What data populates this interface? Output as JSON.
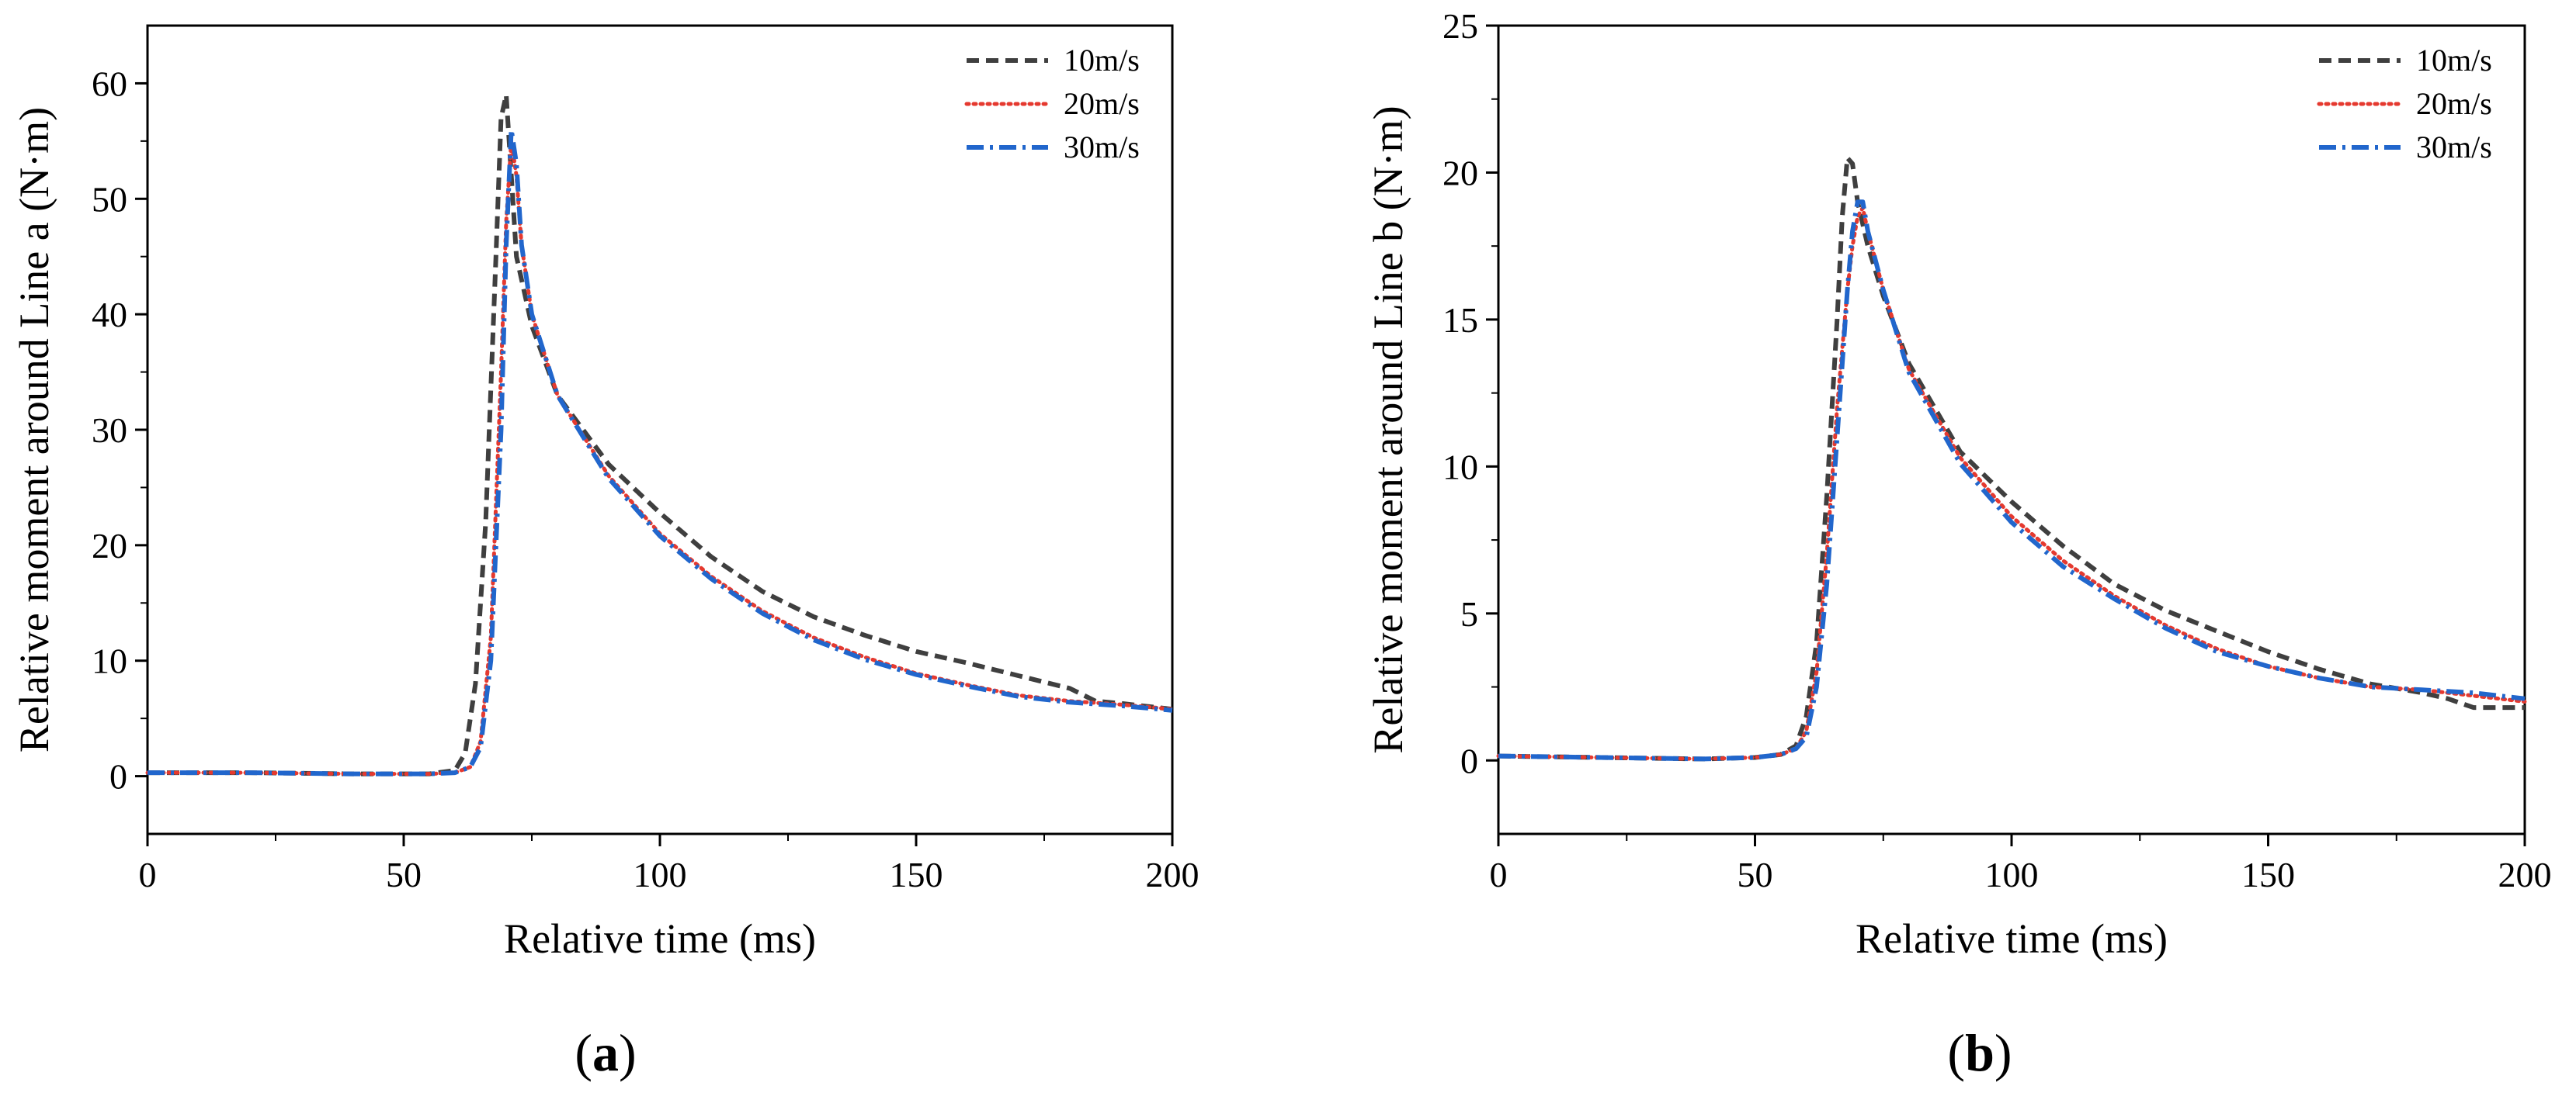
{
  "chart_data": [
    {
      "type": "line",
      "panel_label": "a",
      "xlabel": "Relative time (ms)",
      "ylabel": "Relative moment around Line a (N·m)",
      "xlim": [
        0,
        200
      ],
      "ylim": [
        -5,
        65
      ],
      "xticks": [
        0,
        50,
        100,
        150,
        200
      ],
      "yticks": [
        0,
        10,
        20,
        30,
        40,
        50,
        60
      ],
      "legend_position": "top-right",
      "series": [
        {
          "name": "10m/s",
          "color": "#3f3f3f",
          "style": "dash",
          "x": [
            0,
            20,
            40,
            55,
            60,
            62,
            64,
            66,
            68,
            69,
            70,
            71,
            72,
            75,
            80,
            90,
            100,
            110,
            120,
            130,
            140,
            150,
            160,
            170,
            180,
            185,
            190,
            200
          ],
          "y": [
            0.3,
            0.3,
            0.2,
            0.2,
            0.5,
            2,
            8,
            22,
            45,
            57,
            59,
            52,
            45,
            39,
            33,
            27,
            22.8,
            19,
            16,
            13.8,
            12.2,
            10.8,
            9.8,
            8.7,
            7.6,
            6.5,
            6.3,
            5.8
          ]
        },
        {
          "name": "20m/s",
          "color": "#e5392f",
          "style": "dot",
          "x": [
            0,
            20,
            40,
            55,
            60,
            63,
            65,
            67,
            69,
            70,
            71,
            72,
            73,
            75,
            80,
            90,
            100,
            110,
            120,
            130,
            140,
            150,
            160,
            170,
            180,
            190,
            200
          ],
          "y": [
            0.3,
            0.3,
            0.2,
            0.2,
            0.3,
            0.8,
            3,
            12,
            35,
            48,
            55,
            52,
            46,
            40,
            33,
            26,
            21,
            17.3,
            14.3,
            12,
            10.3,
            8.9,
            7.9,
            7,
            6.5,
            6.2,
            5.8
          ]
        },
        {
          "name": "30m/s",
          "color": "#2166cc",
          "style": "dashdot",
          "x": [
            0,
            20,
            40,
            55,
            60,
            63,
            65,
            67,
            69,
            70,
            71,
            72,
            73,
            75,
            80,
            90,
            100,
            110,
            120,
            130,
            140,
            150,
            160,
            170,
            180,
            190,
            200
          ],
          "y": [
            0.3,
            0.3,
            0.2,
            0.2,
            0.3,
            0.8,
            2.5,
            10,
            30,
            46,
            56,
            53,
            46,
            40,
            33,
            25.8,
            20.8,
            17.1,
            14.1,
            11.8,
            10.1,
            8.8,
            7.8,
            6.9,
            6.4,
            6.1,
            5.7
          ]
        }
      ]
    },
    {
      "type": "line",
      "panel_label": "b",
      "xlabel": "Relative time (ms)",
      "ylabel": "Relative moment around Line b (N·m)",
      "xlim": [
        0,
        200
      ],
      "ylim": [
        -2.5,
        25
      ],
      "xticks": [
        0,
        50,
        100,
        150,
        200
      ],
      "yticks": [
        0,
        5,
        10,
        15,
        20,
        25
      ],
      "legend_position": "top-right",
      "series": [
        {
          "name": "10m/s",
          "color": "#3f3f3f",
          "style": "dash",
          "x": [
            0,
            20,
            40,
            50,
            55,
            58,
            60,
            62,
            64,
            66,
            67,
            68,
            69,
            70,
            72,
            75,
            80,
            90,
            100,
            110,
            120,
            130,
            140,
            150,
            160,
            170,
            180,
            185,
            190,
            200
          ],
          "y": [
            0.15,
            0.1,
            0.05,
            0.1,
            0.2,
            0.5,
            1.5,
            4,
            9,
            15,
            18.5,
            20.5,
            20.3,
            19,
            17.5,
            15.8,
            13.5,
            10.5,
            8.8,
            7.3,
            6,
            5.1,
            4.4,
            3.7,
            3.1,
            2.6,
            2.3,
            2.1,
            1.8,
            1.8
          ]
        },
        {
          "name": "20m/s",
          "color": "#e5392f",
          "style": "dot",
          "x": [
            0,
            20,
            40,
            50,
            55,
            58,
            60,
            62,
            64,
            66,
            68,
            69,
            70,
            71,
            72,
            75,
            80,
            90,
            100,
            110,
            120,
            130,
            140,
            150,
            160,
            170,
            180,
            190,
            200
          ],
          "y": [
            0.15,
            0.1,
            0.05,
            0.1,
            0.2,
            0.4,
            1,
            3,
            7,
            12,
            16,
            17.5,
            18.5,
            18.8,
            18,
            16,
            13.3,
            10.3,
            8.3,
            6.8,
            5.6,
            4.6,
            3.8,
            3.2,
            2.8,
            2.5,
            2.4,
            2.2,
            2
          ]
        },
        {
          "name": "30m/s",
          "color": "#2166cc",
          "style": "dashdot",
          "x": [
            0,
            20,
            40,
            50,
            55,
            58,
            60,
            62,
            64,
            66,
            68,
            69,
            70,
            71,
            72,
            75,
            80,
            90,
            100,
            110,
            120,
            130,
            140,
            150,
            160,
            170,
            180,
            190,
            200
          ],
          "y": [
            0.15,
            0.1,
            0.05,
            0.1,
            0.2,
            0.4,
            0.8,
            2.5,
            6,
            11,
            16,
            18,
            19,
            19,
            18,
            16,
            13.2,
            10.1,
            8.1,
            6.6,
            5.5,
            4.5,
            3.7,
            3.2,
            2.8,
            2.5,
            2.4,
            2.3,
            2.1
          ]
        }
      ]
    }
  ]
}
